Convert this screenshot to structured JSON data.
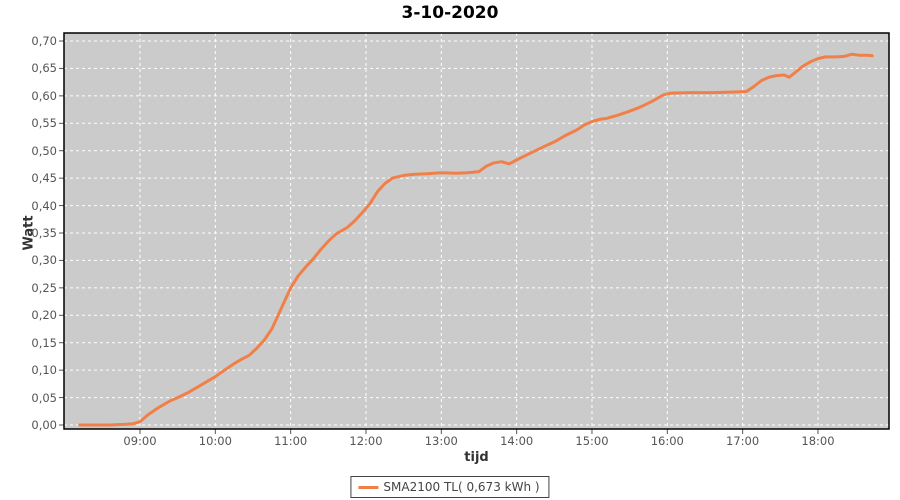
{
  "title": "3-10-2020",
  "axes": {
    "y_label": "Watt",
    "x_label": "tijd",
    "y_tick_labels": [
      "0,00",
      "0,05",
      "0,10",
      "0,15",
      "0,20",
      "0,25",
      "0,30",
      "0,35",
      "0,40",
      "0,45",
      "0,50",
      "0,55",
      "0,60",
      "0,65",
      "0,70"
    ],
    "x_tick_labels": [
      "09:00",
      "10:00",
      "11:00",
      "12:00",
      "13:00",
      "14:00",
      "15:00",
      "16:00",
      "17:00",
      "18:00"
    ]
  },
  "legend": {
    "series_label": "SMA2100 TL( 0,673 kWh )"
  },
  "colors": {
    "plot_bg": "#cbcbcb",
    "grid": "#ffffff",
    "line": "#f08048",
    "border": "#000000",
    "tick": "#555555"
  },
  "chart_data": {
    "type": "line",
    "title": "3-10-2020",
    "xlabel": "tijd",
    "ylabel": "Watt",
    "x_unit": "hour_of_day",
    "xlim": [
      7.99,
      18.94
    ],
    "ylim": [
      0.0,
      0.7
    ],
    "y_tick_values": [
      0.0,
      0.05,
      0.1,
      0.15,
      0.2,
      0.25,
      0.3,
      0.35,
      0.4,
      0.45,
      0.5,
      0.55,
      0.6,
      0.65,
      0.7
    ],
    "x_tick_hours": [
      9,
      10,
      11,
      12,
      13,
      14,
      15,
      16,
      17,
      18
    ],
    "grid": true,
    "grid_style": "white-dashed",
    "legend_position": "bottom",
    "series": [
      {
        "name": "SMA2100 TL( 0,673 kWh )",
        "color": "#f08048",
        "total_kwh_label": "0,673",
        "points": [
          [
            8.2,
            0.0
          ],
          [
            8.6,
            0.0
          ],
          [
            8.9,
            0.002
          ],
          [
            9.0,
            0.006
          ],
          [
            9.1,
            0.018
          ],
          [
            9.25,
            0.032
          ],
          [
            9.4,
            0.044
          ],
          [
            9.5,
            0.05
          ],
          [
            9.65,
            0.06
          ],
          [
            9.75,
            0.068
          ],
          [
            9.9,
            0.08
          ],
          [
            10.0,
            0.088
          ],
          [
            10.1,
            0.098
          ],
          [
            10.25,
            0.112
          ],
          [
            10.35,
            0.12
          ],
          [
            10.45,
            0.127
          ],
          [
            10.55,
            0.14
          ],
          [
            10.65,
            0.155
          ],
          [
            10.75,
            0.175
          ],
          [
            10.85,
            0.205
          ],
          [
            10.95,
            0.235
          ],
          [
            11.0,
            0.25
          ],
          [
            11.1,
            0.272
          ],
          [
            11.2,
            0.288
          ],
          [
            11.3,
            0.303
          ],
          [
            11.4,
            0.32
          ],
          [
            11.5,
            0.335
          ],
          [
            11.6,
            0.348
          ],
          [
            11.75,
            0.36
          ],
          [
            11.85,
            0.372
          ],
          [
            11.95,
            0.387
          ],
          [
            12.05,
            0.403
          ],
          [
            12.15,
            0.425
          ],
          [
            12.25,
            0.44
          ],
          [
            12.35,
            0.45
          ],
          [
            12.5,
            0.455
          ],
          [
            12.65,
            0.457
          ],
          [
            12.8,
            0.458
          ],
          [
            13.0,
            0.46
          ],
          [
            13.2,
            0.459
          ],
          [
            13.35,
            0.46
          ],
          [
            13.5,
            0.462
          ],
          [
            13.6,
            0.472
          ],
          [
            13.7,
            0.478
          ],
          [
            13.8,
            0.48
          ],
          [
            13.9,
            0.476
          ],
          [
            14.0,
            0.483
          ],
          [
            14.1,
            0.49
          ],
          [
            14.25,
            0.5
          ],
          [
            14.4,
            0.51
          ],
          [
            14.5,
            0.516
          ],
          [
            14.65,
            0.528
          ],
          [
            14.8,
            0.538
          ],
          [
            14.9,
            0.547
          ],
          [
            15.0,
            0.553
          ],
          [
            15.1,
            0.557
          ],
          [
            15.2,
            0.559
          ],
          [
            15.35,
            0.565
          ],
          [
            15.5,
            0.572
          ],
          [
            15.65,
            0.58
          ],
          [
            15.8,
            0.59
          ],
          [
            15.95,
            0.602
          ],
          [
            16.05,
            0.605
          ],
          [
            16.3,
            0.606
          ],
          [
            16.6,
            0.606
          ],
          [
            16.9,
            0.607
          ],
          [
            17.05,
            0.608
          ],
          [
            17.15,
            0.617
          ],
          [
            17.25,
            0.628
          ],
          [
            17.35,
            0.634
          ],
          [
            17.45,
            0.637
          ],
          [
            17.55,
            0.638
          ],
          [
            17.62,
            0.634
          ],
          [
            17.7,
            0.643
          ],
          [
            17.8,
            0.654
          ],
          [
            17.9,
            0.662
          ],
          [
            18.0,
            0.668
          ],
          [
            18.1,
            0.671
          ],
          [
            18.25,
            0.671
          ],
          [
            18.35,
            0.672
          ],
          [
            18.45,
            0.676
          ],
          [
            18.55,
            0.674
          ],
          [
            18.65,
            0.674
          ],
          [
            18.72,
            0.673
          ]
        ]
      }
    ]
  }
}
